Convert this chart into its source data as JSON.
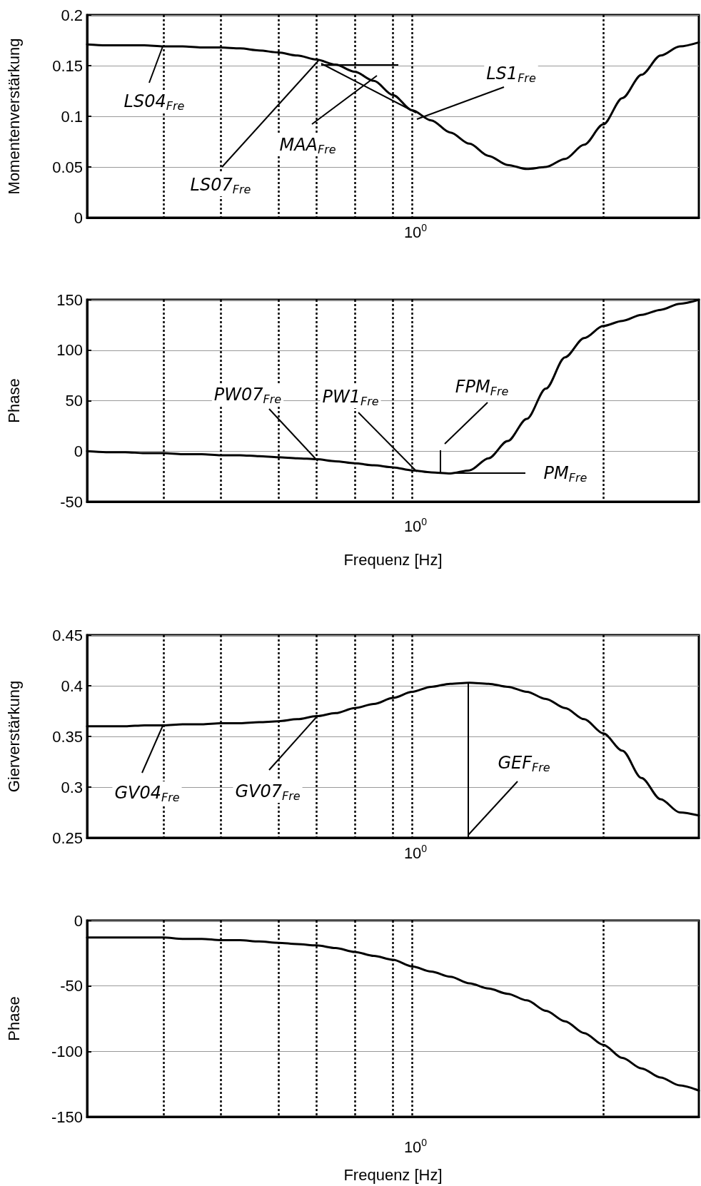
{
  "chart_data": [
    {
      "type": "line",
      "ylabel": "Momentenverstärkung",
      "ylim": [
        0,
        0.2
      ],
      "grid": true,
      "marker": "none",
      "line_style": "solid",
      "categories": [
        null,
        null,
        null,
        null,
        null,
        null,
        null,
        null,
        null,
        null,
        null,
        null,
        null,
        null,
        null,
        null,
        null,
        null,
        null,
        null,
        null,
        null,
        null,
        null,
        null,
        null,
        null,
        null,
        null,
        null,
        null,
        null,
        null
      ],
      "yticks": [
        0,
        0.05,
        0.1,
        0.15,
        0.2
      ],
      "series": [
        {
          "color": "#000000",
          "values": [
            0.171,
            0.17,
            0.17,
            0.17,
            0.169,
            0.169,
            0.168,
            0.168,
            0.167,
            0.165,
            0.163,
            0.16,
            0.156,
            0.151,
            0.144,
            0.135,
            0.121,
            0.106,
            0.096,
            0.084,
            0.073,
            0.061,
            0.052,
            0.048,
            0.05,
            0.058,
            0.072,
            0.092,
            0.118,
            0.141,
            0.16,
            0.169,
            0.173
          ]
        }
      ],
      "annotations": [
        "10$^{0}$",
        "LS04$_{Fre}$",
        "LS07$_{Fre}$",
        "MAA$_{Fre}$",
        "LS1$_{Fre}$"
      ]
    },
    {
      "type": "line",
      "ylabel": "Phase",
      "xlabel": "Frequenz [Hz]",
      "ylim": [
        -50,
        150
      ],
      "grid": true,
      "marker": "none",
      "line_style": "solid",
      "categories": [
        null,
        null,
        null,
        null,
        null,
        null,
        null,
        null,
        null,
        null,
        null,
        null,
        null,
        null,
        null,
        null,
        null,
        null,
        null,
        null,
        null,
        null,
        null,
        null,
        null,
        null,
        null,
        null,
        null,
        null,
        null,
        null,
        null
      ],
      "yticks": [
        -50,
        0,
        50,
        100,
        150
      ],
      "series": [
        {
          "color": "#000000",
          "values": [
            0,
            -1,
            -1,
            -2,
            -2,
            -3,
            -3,
            -4,
            -4,
            -5,
            -6,
            -7,
            -8,
            -10,
            -12,
            -14,
            -16,
            -19,
            -21,
            -22,
            -19,
            -7,
            10,
            32,
            62,
            93,
            112,
            124,
            129,
            135,
            140,
            146,
            150
          ]
        }
      ],
      "annotations": [
        "10$^{0}$",
        "PW07$_{Fre}$",
        "PW1$_{Fre}$",
        "FPM$_{Fre}$",
        "PM$_{Fre}$"
      ]
    },
    {
      "type": "line",
      "ylabel": "Gierverstärkung",
      "ylim": [
        0.25,
        0.45
      ],
      "grid": true,
      "marker": "none",
      "line_style": "solid",
      "categories": [
        null,
        null,
        null,
        null,
        null,
        null,
        null,
        null,
        null,
        null,
        null,
        null,
        null,
        null,
        null,
        null,
        null,
        null,
        null,
        null,
        null,
        null,
        null,
        null,
        null,
        null,
        null,
        null,
        null,
        null,
        null,
        null,
        null
      ],
      "yticks": [
        0.25,
        0.3,
        0.35,
        0.4,
        0.45
      ],
      "series": [
        {
          "color": "#000000",
          "values": [
            0.36,
            0.36,
            0.36,
            0.361,
            0.361,
            0.362,
            0.362,
            0.363,
            0.363,
            0.364,
            0.365,
            0.367,
            0.37,
            0.373,
            0.378,
            0.382,
            0.388,
            0.394,
            0.399,
            0.402,
            0.403,
            0.402,
            0.399,
            0.394,
            0.387,
            0.378,
            0.367,
            0.353,
            0.336,
            0.309,
            0.288,
            0.275,
            0.272
          ]
        }
      ],
      "annotations": [
        "10$^{0}$",
        "GV04$_{Fre}$",
        "GV07$_{Fre}$",
        "GEF$_{Fre}$"
      ]
    },
    {
      "type": "line",
      "ylabel": "Phase",
      "xlabel": "Frequenz [Hz]",
      "ylim": [
        -150,
        0
      ],
      "grid": true,
      "marker": "none",
      "line_style": "solid",
      "categories": [
        null,
        null,
        null,
        null,
        null,
        null,
        null,
        null,
        null,
        null,
        null,
        null,
        null,
        null,
        null,
        null,
        null,
        null,
        null,
        null,
        null,
        null,
        null,
        null,
        null,
        null,
        null,
        null,
        null,
        null,
        null,
        null,
        null
      ],
      "yticks": [
        -150,
        -100,
        -50,
        0
      ],
      "series": [
        {
          "color": "#000000",
          "values": [
            -13,
            -13,
            -13,
            -13,
            -13,
            -14,
            -14,
            -15,
            -15,
            -16,
            -17,
            -18,
            -19,
            -21,
            -24,
            -27,
            -30,
            -35,
            -39,
            -43,
            -48,
            -52,
            -56,
            -61,
            -69,
            -77,
            -86,
            -95,
            -105,
            -113,
            -120,
            -126,
            -130
          ]
        }
      ],
      "annotations": [
        "10$^{0}$"
      ]
    }
  ]
}
